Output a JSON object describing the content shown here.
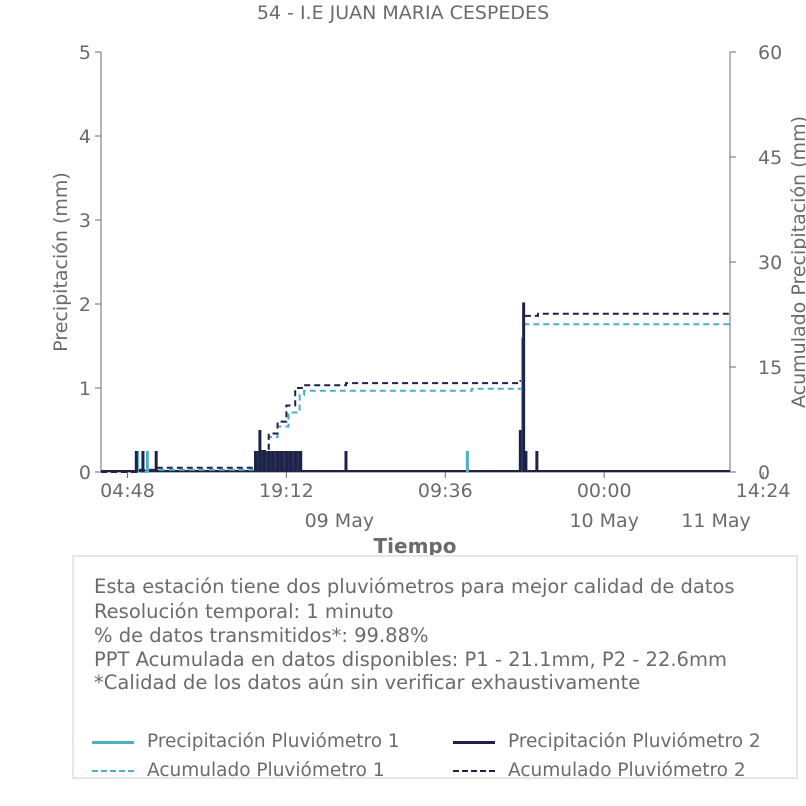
{
  "title": "54 - I.E JUAN MARIA CESPEDES",
  "colors": {
    "p1": "#4ab1c4",
    "p2": "#1e2148",
    "axis": "#6b6b6b",
    "box_border": "#e6e6e6"
  },
  "chart_data": {
    "type": "line",
    "title": "54 - I.E JUAN MARIA CESPEDES",
    "xlabel": "Tiempo",
    "ylabel_left": "Precipitación (mm)",
    "ylabel_right": "Acumulado Precipitación (mm)",
    "xlim_hours": [
      0,
      57
    ],
    "ylim_left": [
      0,
      5
    ],
    "ylim_right": [
      0,
      60
    ],
    "yticks_left": [
      0,
      1,
      2,
      3,
      4,
      5
    ],
    "yticks_right": [
      0,
      15,
      30,
      45,
      60
    ],
    "xticks": [
      {
        "hours": 2.4,
        "label": "04:48"
      },
      {
        "hours": 16.8,
        "label": "19:12"
      },
      {
        "hours": 31.2,
        "label": "09:36"
      },
      {
        "hours": 45.6,
        "label": "00:00"
      },
      {
        "hours": 60.0,
        "label": "14:24"
      }
    ],
    "date_labels": [
      {
        "hours": 21.6,
        "label": "09 May"
      },
      {
        "hours": 45.6,
        "label": "10 May"
      },
      {
        "hours": 69.6,
        "label": "11 May"
      }
    ],
    "grid": false,
    "series": [
      {
        "name": "Precipitación Pluviómetro 1",
        "axis": "left",
        "style": "solid",
        "color": "#4ab1c4",
        "points": [
          [
            3.3,
            0.25
          ],
          [
            4.2,
            0.25
          ],
          [
            14.1,
            0.25
          ],
          [
            14.6,
            0.25
          ],
          [
            15.4,
            0.25
          ],
          [
            16.2,
            0.25
          ],
          [
            17.0,
            0.25
          ],
          [
            17.8,
            0.25
          ],
          [
            33.2,
            0.25
          ],
          [
            38.2,
            1.6
          ],
          [
            38.5,
            0.25
          ]
        ]
      },
      {
        "name": "Precipitación Pluviómetro 2",
        "axis": "left",
        "style": "solid",
        "color": "#1e2148",
        "points": [
          [
            3.2,
            0.25
          ],
          [
            3.8,
            0.25
          ],
          [
            5.0,
            0.25
          ],
          [
            14.0,
            0.25
          ],
          [
            14.4,
            0.5
          ],
          [
            14.8,
            0.25
          ],
          [
            15.2,
            0.25
          ],
          [
            15.6,
            0.25
          ],
          [
            16.0,
            0.25
          ],
          [
            16.4,
            0.25
          ],
          [
            16.8,
            0.25
          ],
          [
            17.2,
            0.25
          ],
          [
            17.6,
            0.25
          ],
          [
            18.1,
            0.25
          ],
          [
            22.2,
            0.25
          ],
          [
            38.0,
            0.5
          ],
          [
            38.3,
            2.02
          ],
          [
            38.5,
            0.25
          ],
          [
            39.5,
            0.25
          ]
        ]
      },
      {
        "name": "Acumulado Pluviómetro 1",
        "axis": "right",
        "style": "dashed",
        "color": "#4ab1c4",
        "x": [
          0,
          4.2,
          14.0,
          14.6,
          15.2,
          16.0,
          17.0,
          18.0,
          18.4,
          33.0,
          33.6,
          38.1,
          38.3,
          57.0
        ],
        "y": [
          0,
          0.3,
          0.5,
          2.5,
          5.0,
          6.5,
          8.5,
          11.0,
          11.6,
          11.6,
          11.9,
          11.9,
          21.1,
          21.1
        ]
      },
      {
        "name": "Acumulado Pluviómetro 2",
        "axis": "right",
        "style": "dashed",
        "color": "#1e2148",
        "x": [
          0,
          3.2,
          5.0,
          14.0,
          14.4,
          15.2,
          16.0,
          16.8,
          17.6,
          18.2,
          18.8,
          22.2,
          37.8,
          38.0,
          38.3,
          39.2,
          39.6,
          57.0
        ],
        "y": [
          0,
          0.3,
          0.6,
          0.9,
          3.0,
          5.5,
          7.2,
          9.5,
          12.0,
          12.4,
          12.4,
          12.7,
          12.7,
          13.0,
          22.3,
          22.3,
          22.6,
          22.6
        ]
      }
    ]
  },
  "info": {
    "lines": [
      "Esta estación tiene dos pluviómetros para mejor calidad de datos",
      "Resolución temporal: 1 minuto",
      "% de datos transmitidos*: 99.88%",
      "PPT Acumulada en datos disponibles: P1 - 21.1mm, P2 - 22.6mm",
      "*Calidad de los datos aún sin verificar exhaustivamente"
    ]
  },
  "legend": {
    "p1_line": "Precipitación Pluviómetro 1",
    "p2_line": "Precipitación Pluviómetro 2",
    "p1_cum": "Acumulado Pluviómetro 1",
    "p2_cum": "Acumulado Pluviómetro 2"
  }
}
